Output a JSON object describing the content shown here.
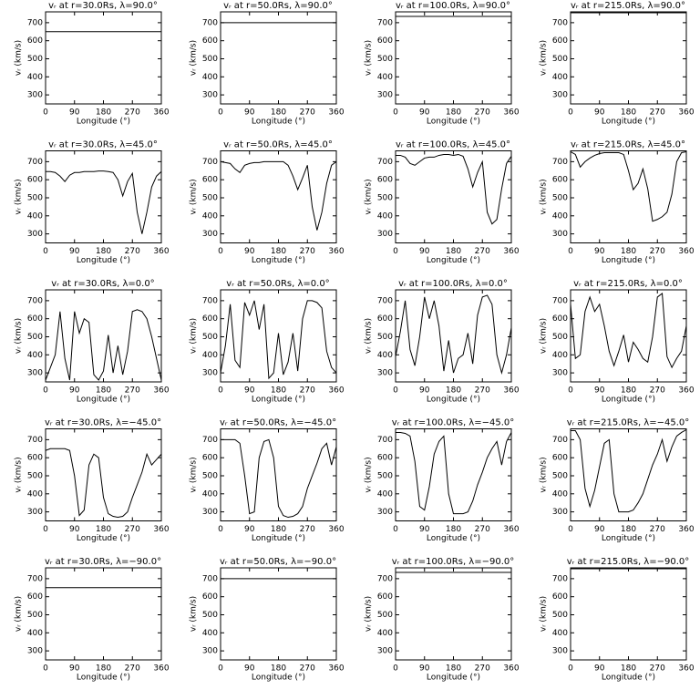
{
  "chart_data": [
    {
      "type": "line",
      "title": "vᵣ at r=30.0Rs, λ=90.0°",
      "x_label": "Longitude (°)",
      "y_label": "vᵣ (km/s)",
      "x": [
        0,
        360
      ],
      "values": [
        650,
        650
      ],
      "xlim": [
        0,
        360
      ],
      "ylim": [
        250,
        760
      ],
      "xticks": [
        0,
        90,
        180,
        270,
        360
      ],
      "yticks": [
        300,
        400,
        500,
        600,
        700
      ],
      "color": "#000000"
    },
    {
      "type": "line",
      "title": "vᵣ at r=50.0Rs, λ=90.0°",
      "x_label": "Longitude (°)",
      "y_label": "vᵣ (km/s)",
      "x": [
        0,
        360
      ],
      "values": [
        700,
        700
      ],
      "xlim": [
        0,
        360
      ],
      "ylim": [
        250,
        760
      ],
      "xticks": [
        0,
        90,
        180,
        270,
        360
      ],
      "yticks": [
        300,
        400,
        500,
        600,
        700
      ],
      "color": "#000000"
    },
    {
      "type": "line",
      "title": "vᵣ at r=100.0Rs, λ=90.0°",
      "x_label": "Longitude (°)",
      "y_label": "vᵣ (km/s)",
      "x": [
        0,
        360
      ],
      "values": [
        735,
        735
      ],
      "xlim": [
        0,
        360
      ],
      "ylim": [
        250,
        760
      ],
      "xticks": [
        0,
        90,
        180,
        270,
        360
      ],
      "yticks": [
        300,
        400,
        500,
        600,
        700
      ],
      "color": "#000000"
    },
    {
      "type": "line",
      "title": "vᵣ at r=215.0Rs, λ=90.0°",
      "x_label": "Longitude (°)",
      "y_label": "vᵣ (km/s)",
      "x": [
        0,
        360
      ],
      "values": [
        755,
        755
      ],
      "xlim": [
        0,
        360
      ],
      "ylim": [
        250,
        760
      ],
      "xticks": [
        0,
        90,
        180,
        270,
        360
      ],
      "yticks": [
        300,
        400,
        500,
        600,
        700
      ],
      "color": "#000000"
    },
    {
      "type": "line",
      "title": "vᵣ at r=30.0Rs, λ=45.0°",
      "x_label": "Longitude (°)",
      "y_label": "vᵣ (km/s)",
      "x": [
        0,
        15,
        30,
        45,
        60,
        75,
        90,
        105,
        120,
        135,
        150,
        165,
        180,
        195,
        210,
        225,
        240,
        255,
        270,
        285,
        300,
        315,
        330,
        345,
        360
      ],
      "values": [
        645,
        645,
        640,
        620,
        590,
        625,
        640,
        640,
        645,
        645,
        645,
        648,
        648,
        645,
        640,
        600,
        510,
        590,
        635,
        420,
        300,
        420,
        560,
        620,
        645
      ],
      "xlim": [
        0,
        360
      ],
      "ylim": [
        250,
        760
      ],
      "xticks": [
        0,
        90,
        180,
        270,
        360
      ],
      "yticks": [
        300,
        400,
        500,
        600,
        700
      ],
      "color": "#000000"
    },
    {
      "type": "line",
      "title": "vᵣ at r=50.0Rs, λ=45.0°",
      "x_label": "Longitude (°)",
      "y_label": "vᵣ (km/s)",
      "x": [
        0,
        15,
        30,
        45,
        60,
        75,
        90,
        105,
        120,
        135,
        150,
        165,
        180,
        195,
        210,
        225,
        240,
        255,
        270,
        285,
        300,
        315,
        330,
        345,
        360
      ],
      "values": [
        700,
        695,
        690,
        660,
        640,
        680,
        690,
        695,
        695,
        700,
        700,
        700,
        700,
        700,
        680,
        620,
        545,
        610,
        680,
        450,
        320,
        420,
        580,
        680,
        700
      ],
      "xlim": [
        0,
        360
      ],
      "ylim": [
        250,
        760
      ],
      "xticks": [
        0,
        90,
        180,
        270,
        360
      ],
      "yticks": [
        300,
        400,
        500,
        600,
        700
      ],
      "color": "#000000"
    },
    {
      "type": "line",
      "title": "vᵣ at r=100.0Rs, λ=45.0°",
      "x_label": "Longitude (°)",
      "y_label": "vᵣ (km/s)",
      "x": [
        0,
        15,
        30,
        45,
        60,
        75,
        90,
        105,
        120,
        135,
        150,
        165,
        180,
        195,
        210,
        225,
        240,
        255,
        270,
        285,
        300,
        315,
        330,
        345,
        360
      ],
      "values": [
        735,
        735,
        725,
        690,
        680,
        700,
        720,
        725,
        725,
        735,
        740,
        740,
        735,
        740,
        730,
        660,
        560,
        640,
        700,
        420,
        355,
        380,
        550,
        690,
        730
      ],
      "xlim": [
        0,
        360
      ],
      "ylim": [
        250,
        760
      ],
      "xticks": [
        0,
        90,
        180,
        270,
        360
      ],
      "yticks": [
        300,
        400,
        500,
        600,
        700
      ],
      "color": "#000000"
    },
    {
      "type": "line",
      "title": "vᵣ at r=215.0Rs, λ=45.0°",
      "x_label": "Longitude (°)",
      "y_label": "vᵣ (km/s)",
      "x": [
        0,
        15,
        30,
        45,
        60,
        75,
        90,
        105,
        120,
        135,
        150,
        165,
        180,
        195,
        210,
        225,
        240,
        255,
        270,
        285,
        300,
        315,
        330,
        345,
        360
      ],
      "values": [
        755,
        740,
        670,
        700,
        720,
        735,
        745,
        750,
        750,
        750,
        750,
        740,
        650,
        545,
        580,
        660,
        550,
        370,
        380,
        395,
        420,
        520,
        700,
        750,
        755
      ],
      "xlim": [
        0,
        360
      ],
      "ylim": [
        250,
        760
      ],
      "xticks": [
        0,
        90,
        180,
        270,
        360
      ],
      "yticks": [
        300,
        400,
        500,
        600,
        700
      ],
      "color": "#000000"
    },
    {
      "type": "line",
      "title": "vᵣ at r=30.0Rs, λ=0.0°",
      "x_label": "Longitude (°)",
      "y_label": "vᵣ (km/s)",
      "x": [
        0,
        15,
        30,
        45,
        60,
        75,
        90,
        105,
        120,
        135,
        150,
        165,
        180,
        195,
        210,
        225,
        240,
        255,
        270,
        285,
        300,
        315,
        330,
        345,
        360
      ],
      "values": [
        260,
        330,
        400,
        640,
        380,
        260,
        640,
        520,
        600,
        580,
        290,
        260,
        310,
        510,
        300,
        450,
        290,
        420,
        640,
        650,
        640,
        600,
        500,
        380,
        260
      ],
      "xlim": [
        0,
        360
      ],
      "ylim": [
        250,
        760
      ],
      "xticks": [
        0,
        90,
        180,
        270,
        360
      ],
      "yticks": [
        300,
        400,
        500,
        600,
        700
      ],
      "color": "#000000"
    },
    {
      "type": "line",
      "title": "vᵣ at r=50.0Rs, λ=0.0°",
      "x_label": "Longitude (°)",
      "y_label": "vᵣ (km/s)",
      "x": [
        0,
        15,
        30,
        45,
        60,
        75,
        90,
        105,
        120,
        135,
        150,
        165,
        180,
        195,
        210,
        225,
        240,
        255,
        270,
        285,
        300,
        315,
        330,
        345,
        360
      ],
      "values": [
        300,
        450,
        680,
        370,
        330,
        690,
        620,
        700,
        540,
        680,
        270,
        300,
        520,
        290,
        360,
        520,
        310,
        600,
        700,
        700,
        690,
        660,
        420,
        330,
        300
      ],
      "xlim": [
        0,
        360
      ],
      "ylim": [
        250,
        760
      ],
      "xticks": [
        0,
        90,
        180,
        270,
        360
      ],
      "yticks": [
        300,
        400,
        500,
        600,
        700
      ],
      "color": "#000000"
    },
    {
      "type": "line",
      "title": "vᵣ at r=100.0Rs, λ=0.0°",
      "x_label": "Longitude (°)",
      "y_label": "vᵣ (km/s)",
      "x": [
        0,
        15,
        30,
        45,
        60,
        75,
        90,
        105,
        120,
        135,
        150,
        165,
        180,
        195,
        210,
        225,
        240,
        255,
        270,
        285,
        300,
        315,
        330,
        345,
        360
      ],
      "values": [
        390,
        530,
        700,
        430,
        340,
        500,
        720,
        600,
        700,
        560,
        310,
        480,
        300,
        380,
        400,
        520,
        350,
        620,
        720,
        730,
        680,
        400,
        300,
        400,
        550
      ],
      "xlim": [
        0,
        360
      ],
      "ylim": [
        250,
        760
      ],
      "xticks": [
        0,
        90,
        180,
        270,
        360
      ],
      "yticks": [
        300,
        400,
        500,
        600,
        700
      ],
      "color": "#000000"
    },
    {
      "type": "line",
      "title": "vᵣ at r=215.0Rs, λ=0.0°",
      "x_label": "Longitude (°)",
      "y_label": "vᵣ (km/s)",
      "x": [
        0,
        15,
        30,
        45,
        60,
        75,
        90,
        105,
        120,
        135,
        150,
        165,
        180,
        195,
        210,
        225,
        240,
        255,
        270,
        285,
        300,
        315,
        330,
        345,
        360
      ],
      "values": [
        680,
        380,
        400,
        640,
        720,
        640,
        680,
        560,
        420,
        340,
        420,
        510,
        360,
        470,
        430,
        380,
        360,
        500,
        720,
        740,
        390,
        330,
        380,
        420,
        560
      ],
      "xlim": [
        0,
        360
      ],
      "ylim": [
        250,
        760
      ],
      "xticks": [
        0,
        90,
        180,
        270,
        360
      ],
      "yticks": [
        300,
        400,
        500,
        600,
        700
      ],
      "color": "#000000"
    },
    {
      "type": "line",
      "title": "vᵣ at r=30.0Rs, λ=−45.0°",
      "x_label": "Longitude (°)",
      "y_label": "vᵣ (km/s)",
      "x": [
        0,
        15,
        30,
        45,
        60,
        75,
        90,
        105,
        120,
        135,
        150,
        165,
        180,
        195,
        210,
        225,
        240,
        255,
        270,
        285,
        300,
        315,
        330,
        345,
        360
      ],
      "values": [
        640,
        650,
        650,
        650,
        650,
        640,
        500,
        280,
        310,
        560,
        620,
        600,
        380,
        290,
        275,
        270,
        275,
        300,
        380,
        450,
        520,
        620,
        560,
        590,
        620
      ],
      "xlim": [
        0,
        360
      ],
      "ylim": [
        250,
        760
      ],
      "xticks": [
        0,
        90,
        180,
        270,
        360
      ],
      "yticks": [
        300,
        400,
        500,
        600,
        700
      ],
      "color": "#000000"
    },
    {
      "type": "line",
      "title": "vᵣ at r=50.0Rs, λ=−45.0°",
      "x_label": "Longitude (°)",
      "y_label": "vᵣ (km/s)",
      "x": [
        0,
        15,
        30,
        45,
        60,
        75,
        90,
        105,
        120,
        135,
        150,
        165,
        180,
        195,
        210,
        225,
        240,
        255,
        270,
        285,
        300,
        315,
        330,
        345,
        360
      ],
      "values": [
        700,
        700,
        700,
        700,
        680,
        500,
        290,
        300,
        600,
        690,
        700,
        600,
        330,
        280,
        270,
        275,
        290,
        330,
        430,
        500,
        570,
        650,
        680,
        560,
        660
      ],
      "xlim": [
        0,
        360
      ],
      "ylim": [
        250,
        760
      ],
      "xticks": [
        0,
        90,
        180,
        270,
        360
      ],
      "yticks": [
        300,
        400,
        500,
        600,
        700
      ],
      "color": "#000000"
    },
    {
      "type": "line",
      "title": "vᵣ at r=100.0Rs, λ=−45.0°",
      "x_label": "Longitude (°)",
      "y_label": "vᵣ (km/s)",
      "x": [
        0,
        15,
        30,
        45,
        60,
        75,
        90,
        105,
        120,
        135,
        150,
        165,
        180,
        195,
        210,
        225,
        240,
        255,
        270,
        285,
        300,
        315,
        330,
        345,
        360
      ],
      "values": [
        740,
        740,
        735,
        720,
        580,
        330,
        310,
        440,
        620,
        690,
        720,
        400,
        290,
        290,
        290,
        300,
        360,
        450,
        520,
        600,
        650,
        690,
        560,
        690,
        740
      ],
      "xlim": [
        0,
        360
      ],
      "ylim": [
        250,
        760
      ],
      "xticks": [
        0,
        90,
        180,
        270,
        360
      ],
      "yticks": [
        300,
        400,
        500,
        600,
        700
      ],
      "color": "#000000"
    },
    {
      "type": "line",
      "title": "vᵣ at r=215.0Rs, λ=−45.0°",
      "x_label": "Longitude (°)",
      "y_label": "vᵣ (km/s)",
      "x": [
        0,
        15,
        30,
        45,
        60,
        75,
        90,
        105,
        120,
        135,
        150,
        165,
        180,
        195,
        210,
        225,
        240,
        255,
        270,
        285,
        300,
        315,
        330,
        345,
        360
      ],
      "values": [
        750,
        750,
        700,
        430,
        330,
        420,
        550,
        680,
        700,
        400,
        300,
        300,
        300,
        310,
        350,
        400,
        480,
        560,
        620,
        700,
        580,
        660,
        720,
        740,
        755
      ],
      "xlim": [
        0,
        360
      ],
      "ylim": [
        250,
        760
      ],
      "xticks": [
        0,
        90,
        180,
        270,
        360
      ],
      "yticks": [
        300,
        400,
        500,
        600,
        700
      ],
      "color": "#000000"
    },
    {
      "type": "line",
      "title": "vᵣ at r=30.0Rs, λ=−90.0°",
      "x_label": "Longitude (°)",
      "y_label": "vᵣ (km/s)",
      "x": [
        0,
        360
      ],
      "values": [
        650,
        650
      ],
      "xlim": [
        0,
        360
      ],
      "ylim": [
        250,
        760
      ],
      "xticks": [
        0,
        90,
        180,
        270,
        360
      ],
      "yticks": [
        300,
        400,
        500,
        600,
        700
      ],
      "color": "#000000"
    },
    {
      "type": "line",
      "title": "vᵣ at r=50.0Rs, λ=−90.0°",
      "x_label": "Longitude (°)",
      "y_label": "vᵣ (km/s)",
      "x": [
        0,
        360
      ],
      "values": [
        700,
        700
      ],
      "xlim": [
        0,
        360
      ],
      "ylim": [
        250,
        760
      ],
      "xticks": [
        0,
        90,
        180,
        270,
        360
      ],
      "yticks": [
        300,
        400,
        500,
        600,
        700
      ],
      "color": "#000000"
    },
    {
      "type": "line",
      "title": "vᵣ at r=100.0Rs, λ=−90.0°",
      "x_label": "Longitude (°)",
      "y_label": "vᵣ (km/s)",
      "x": [
        0,
        360
      ],
      "values": [
        735,
        735
      ],
      "xlim": [
        0,
        360
      ],
      "ylim": [
        250,
        760
      ],
      "xticks": [
        0,
        90,
        180,
        270,
        360
      ],
      "yticks": [
        300,
        400,
        500,
        600,
        700
      ],
      "color": "#000000"
    },
    {
      "type": "line",
      "title": "vᵣ at r=215.0Rs, λ=−90.0°",
      "x_label": "Longitude (°)",
      "y_label": "vᵣ (km/s)",
      "x": [
        0,
        360
      ],
      "values": [
        755,
        755
      ],
      "xlim": [
        0,
        360
      ],
      "ylim": [
        250,
        760
      ],
      "xticks": [
        0,
        90,
        180,
        270,
        360
      ],
      "yticks": [
        300,
        400,
        500,
        600,
        700
      ],
      "color": "#000000"
    }
  ]
}
